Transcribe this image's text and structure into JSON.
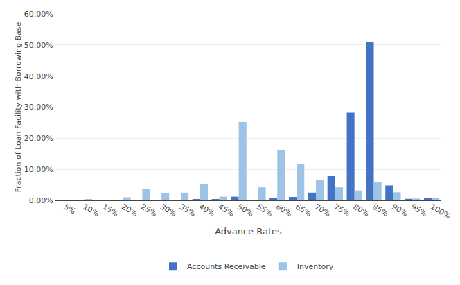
{
  "chart_data": {
    "type": "bar",
    "categories": [
      "5%",
      "10%",
      "15%",
      "20%",
      "25%",
      "30%",
      "35%",
      "40%",
      "45%",
      "50%",
      "55%",
      "60%",
      "65%",
      "70%",
      "75%",
      "80%",
      "85%",
      "90%",
      "95%",
      "100%"
    ],
    "series": [
      {
        "name": "Accounts Receivable",
        "color": "#4472c4",
        "values": [
          0.0,
          0.0,
          0.002,
          0.0,
          0.0,
          0.002,
          0.0,
          0.003,
          0.003,
          0.012,
          0.0,
          0.009,
          0.011,
          0.025,
          0.078,
          0.282,
          0.511,
          0.048,
          0.005,
          0.007
        ]
      },
      {
        "name": "Inventory",
        "color": "#9dc3e6",
        "values": [
          0.0,
          0.004,
          0.001,
          0.01,
          0.038,
          0.024,
          0.025,
          0.053,
          0.012,
          0.252,
          0.042,
          0.161,
          0.118,
          0.065,
          0.042,
          0.032,
          0.058,
          0.026,
          0.006,
          0.007
        ]
      }
    ],
    "xlabel": "Advance Rates",
    "ylabel": "Fraction of Loan Facility with Borrowing Base",
    "ylim": [
      0,
      0.6
    ],
    "yticks": [
      {
        "value": 0,
        "label": "0.00%"
      },
      {
        "value": 0.1,
        "label": "10.00%"
      },
      {
        "value": 0.2,
        "label": "20.00%"
      },
      {
        "value": 0.3,
        "label": "30.00%"
      },
      {
        "value": 0.4,
        "label": "40.00%"
      },
      {
        "value": 0.5,
        "label": "50.00%"
      },
      {
        "value": 0.6,
        "label": "60.00%"
      }
    ],
    "grid": true,
    "legend": "bottom"
  }
}
